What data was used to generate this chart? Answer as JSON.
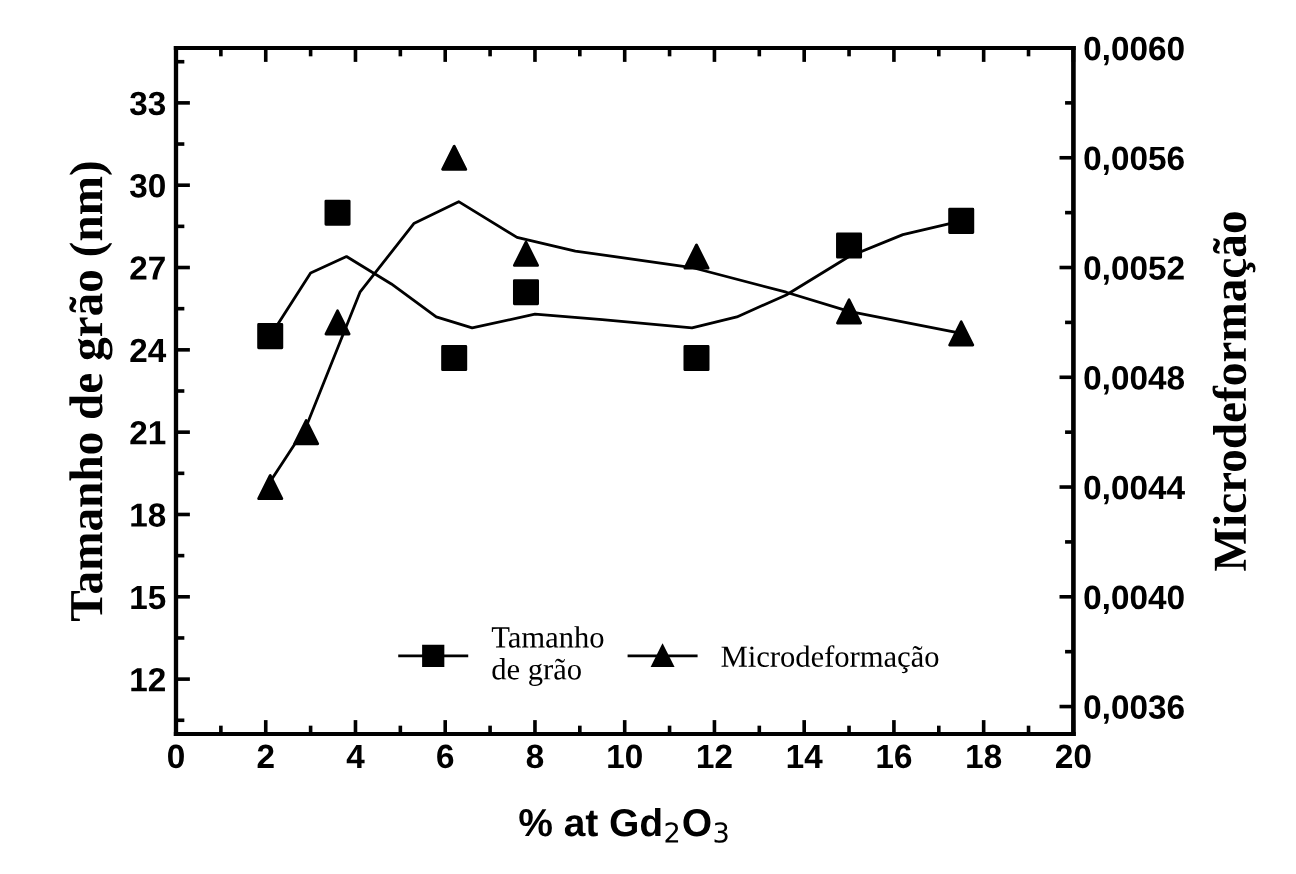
{
  "chart_data": {
    "type": "scatter",
    "xlabel": "% at Gd$_{2}$O$_{3}$",
    "ylabel": "Tamanho de grão (nm)",
    "y2label": "Microdeformação",
    "xlim": [
      0,
      20
    ],
    "xticks": [
      0,
      2,
      4,
      6,
      8,
      10,
      12,
      14,
      16,
      18,
      20
    ],
    "ylim": [
      10,
      35
    ],
    "yticks": [
      12,
      15,
      18,
      21,
      24,
      27,
      30,
      33
    ],
    "y2lim": [
      0.0035,
      0.006
    ],
    "y2ticks": [
      {
        "value": 0.0036,
        "label": "0,0036"
      },
      {
        "value": 0.004,
        "label": "0,0040"
      },
      {
        "value": 0.0044,
        "label": "0,0044"
      },
      {
        "value": 0.0048,
        "label": "0,0048"
      },
      {
        "value": 0.0052,
        "label": "0,0052"
      },
      {
        "value": 0.0056,
        "label": "0,0056"
      },
      {
        "value": 0.006,
        "label": "0,0060"
      }
    ],
    "legend": "bottom",
    "grid": false,
    "series": [
      {
        "name": "Tamanho\nde grão",
        "marker": "square",
        "color": "#000000",
        "x": [
          2.1,
          3.6,
          6.2,
          7.8,
          11.6,
          15.0,
          17.5
        ],
        "values": [
          24.5,
          29.0,
          23.7,
          26.1,
          23.7,
          27.8,
          28.7
        ]
      },
      {
        "name": "Microdeformação",
        "marker": "triangle",
        "axis": "y2",
        "color": "#000000",
        "x": [
          2.1,
          2.9,
          3.6,
          6.2,
          7.8,
          11.6,
          15.0,
          17.5
        ],
        "values": [
          0.0044,
          0.0046,
          0.005,
          0.0056,
          0.00525,
          0.00524,
          0.00504,
          0.00496
        ]
      },
      {
        "type": "line",
        "marker": "none",
        "line_style": "solid",
        "color": "#000000",
        "x": [
          2.1,
          3.0,
          3.8,
          4.8,
          5.8,
          6.6,
          8.0,
          9.5,
          11.5,
          12.5,
          13.6,
          15.0,
          16.2,
          17.5
        ],
        "values": [
          24.5,
          26.8,
          27.4,
          26.4,
          25.2,
          24.8,
          25.3,
          25.1,
          24.8,
          25.2,
          26.0,
          27.4,
          28.2,
          28.7
        ]
      },
      {
        "type": "line",
        "marker": "none",
        "line_style": "solid",
        "axis": "y2",
        "color": "#000000",
        "x": [
          2.1,
          2.9,
          4.1,
          5.3,
          6.3,
          7.6,
          8.9,
          11.5,
          13.6,
          15.0,
          17.5
        ],
        "values": [
          0.00442,
          0.00462,
          0.00511,
          0.00536,
          0.00544,
          0.00531,
          0.00526,
          0.0052,
          0.00511,
          0.00504,
          0.00496
        ]
      }
    ]
  }
}
